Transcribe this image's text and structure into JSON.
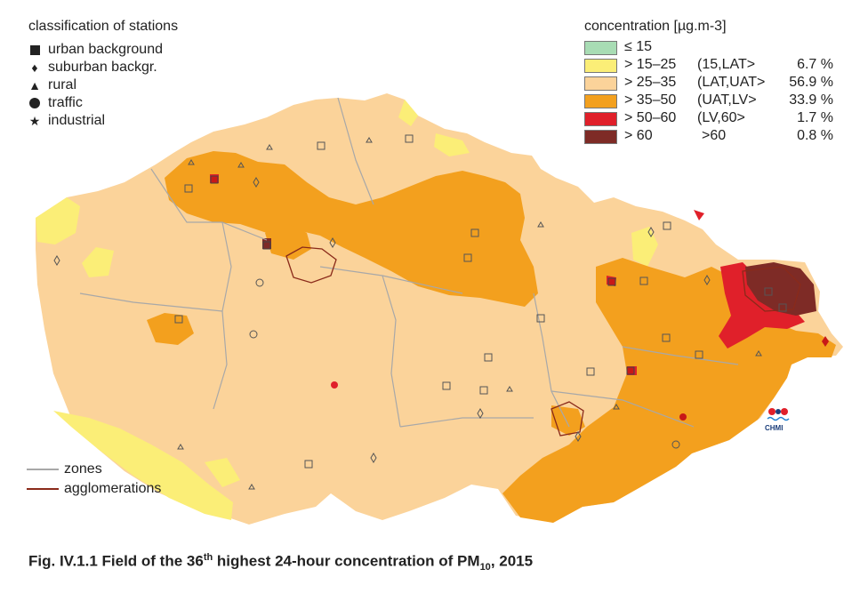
{
  "station_legend": {
    "title": "classification of stations",
    "items": [
      {
        "symbol": "square",
        "label": "urban background"
      },
      {
        "symbol": "diamond",
        "label": "suburban backgr."
      },
      {
        "symbol": "triangle",
        "label": "rural"
      },
      {
        "symbol": "circle",
        "label": "traffic"
      },
      {
        "symbol": "star",
        "label": "industrial"
      }
    ]
  },
  "concentration_legend": {
    "title": "concentration [µg.m-3]",
    "classes": [
      {
        "range": "≤ 15",
        "category": "",
        "percent": "",
        "color": "#a8dcb4"
      },
      {
        "range": "> 15–25",
        "category": "(15,LAT>",
        "percent": "6.7 %",
        "color": "#fbee77"
      },
      {
        "range": "> 25–35",
        "category": "(LAT,UAT>",
        "percent": "56.9 %",
        "color": "#fbd39a"
      },
      {
        "range": "> 35–50",
        "category": "(UAT,LV>",
        "percent": "33.9 %",
        "color": "#f3a01e"
      },
      {
        "range": "> 50–60",
        "category": "(LV,60>",
        "percent": "1.7 %",
        "color": "#e0202a"
      },
      {
        "range": "> 60",
        "category": ">60",
        "percent": "0.8 %",
        "color": "#7e2b26"
      }
    ]
  },
  "line_legend": {
    "zones": "zones",
    "agglomerations": "agglomerations",
    "zones_color": "#a8a8a8",
    "agglomerations_color": "#8a2a1a"
  },
  "logo": {
    "text": "CHMI"
  },
  "caption": {
    "prefix": "Fig. IV.1.1  Field of the 36",
    "sup": "th",
    "middle": " highest 24-hour concentration of PM",
    "sub": "10",
    "suffix": ", 2015"
  }
}
